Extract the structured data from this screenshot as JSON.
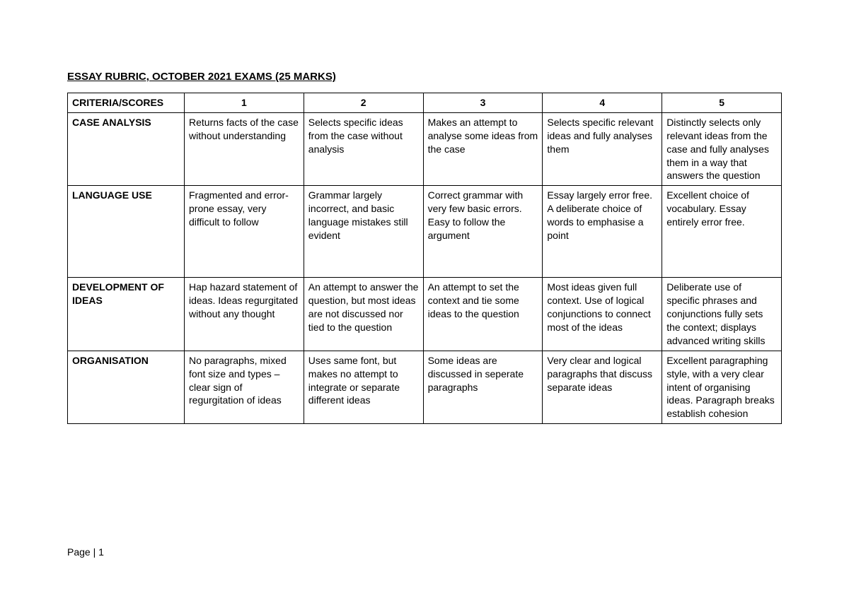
{
  "title": "ESSAY RUBRIC, OCTOBER 2021 EXAMS   (25 MARKS)",
  "header": {
    "criteria_label": "CRITERIA/SCORES",
    "scores": [
      "1",
      "2",
      "3",
      "4",
      "5"
    ]
  },
  "rows": [
    {
      "criteria": "CASE ANALYSIS",
      "cells": [
        "Returns facts of the case without understanding",
        "Selects specific ideas from the case without analysis",
        "Makes an attempt to analyse some ideas from the case",
        "Selects specific relevant ideas and fully analyses them",
        "Distinctly selects only relevant ideas from the case and fully analyses them in a way that answers the question"
      ]
    },
    {
      "criteria": "LANGUAGE USE",
      "cells": [
        "Fragmented and error-prone essay, very difficult to follow",
        "Grammar largely incorrect, and basic language mistakes still evident",
        "Correct grammar with very few basic errors. Easy to follow the argument",
        "Essay largely error free. A deliberate choice of words to emphasise a point",
        "Excellent choice of vocabulary. Essay entirely error free."
      ]
    },
    {
      "criteria": "DEVELOPMENT OF IDEAS",
      "cells": [
        "Hap hazard statement of ideas. Ideas regurgitated without any thought",
        "An attempt to answer the question, but most ideas are not discussed nor tied to the question",
        "An attempt to set the context and tie some ideas to the question",
        "Most ideas given full context. Use of logical conjunctions to connect most of the ideas",
        "Deliberate use of specific phrases and conjunctions fully sets the context; displays advanced writing skills"
      ]
    },
    {
      "criteria": "ORGANISATION",
      "cells": [
        "No paragraphs, mixed font size and types – clear sign of regurgitation of ideas",
        "Uses same font, but makes no attempt to integrate or separate different ideas",
        "Some ideas are discussed in seperate paragraphs",
        "Very clear and logical paragraphs that discuss separate ideas",
        "Excellent paragraphing style, with a very clear intent of organising ideas. Paragraph breaks establish cohesion"
      ]
    }
  ],
  "footer": "Page | 1"
}
